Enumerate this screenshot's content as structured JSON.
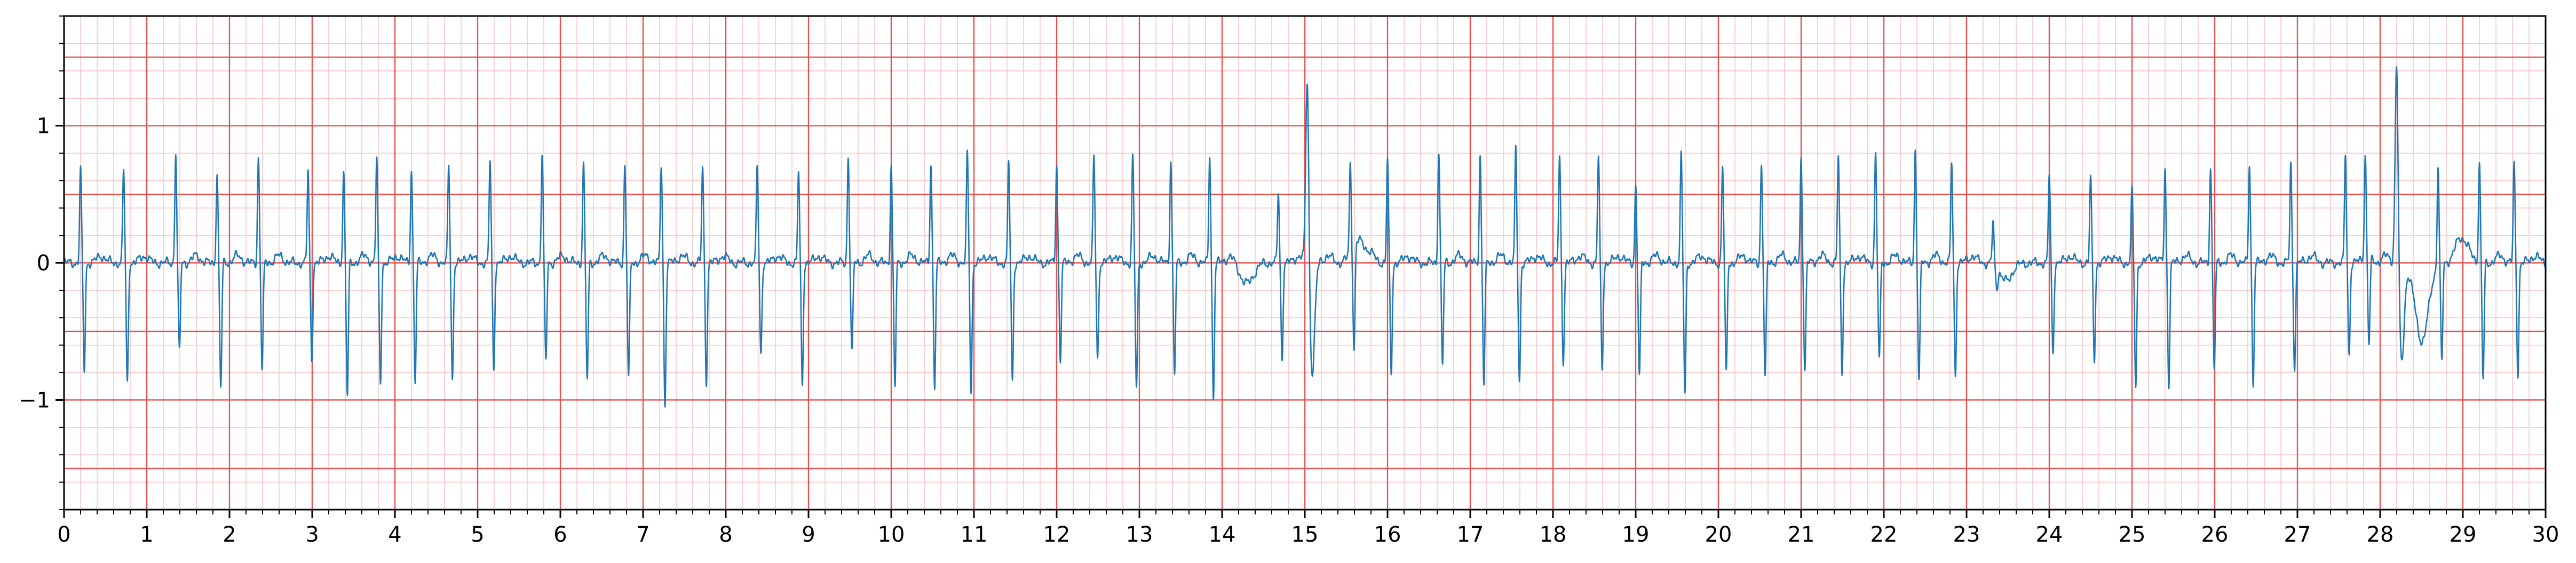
{
  "chart_data": {
    "type": "line",
    "title": "",
    "xlabel": "",
    "ylabel": "",
    "xlim": [
      0,
      30
    ],
    "ylim": [
      -1.8,
      1.8
    ],
    "x_ticks": [
      "0",
      "1",
      "2",
      "3",
      "4",
      "5",
      "6",
      "7",
      "8",
      "9",
      "10",
      "11",
      "12",
      "13",
      "14",
      "15",
      "16",
      "17",
      "18",
      "19",
      "20",
      "21",
      "22",
      "23",
      "24",
      "25",
      "26",
      "27",
      "28",
      "29",
      "30"
    ],
    "x_tick_values": [
      0,
      1,
      2,
      3,
      4,
      5,
      6,
      7,
      8,
      9,
      10,
      11,
      12,
      13,
      14,
      15,
      16,
      17,
      18,
      19,
      20,
      21,
      22,
      23,
      24,
      25,
      26,
      27,
      28,
      29,
      30
    ],
    "y_ticks": [
      "−1",
      "0",
      "1"
    ],
    "y_tick_values": [
      -1,
      0,
      1
    ],
    "grid": {
      "major_x_step": 1,
      "major_y_step": 0.5,
      "minor_step": 0.2,
      "major_color": "#e85050",
      "minor_color": "#f8c6c6"
    },
    "series": [
      {
        "color": "#1f77b4",
        "beats": [
          {
            "t": 0.2,
            "r": 0.68,
            "s": -0.78
          },
          {
            "t": 0.72,
            "r": 0.68,
            "s": -0.88
          },
          {
            "t": 1.35,
            "r": 0.8,
            "s": -0.65
          },
          {
            "t": 1.85,
            "r": 0.66,
            "s": -0.92
          },
          {
            "t": 2.35,
            "r": 0.78,
            "s": -0.78
          },
          {
            "t": 2.95,
            "r": 0.66,
            "s": -0.7
          },
          {
            "t": 3.38,
            "r": 0.66,
            "s": -0.98
          },
          {
            "t": 3.78,
            "r": 0.75,
            "s": -0.88
          },
          {
            "t": 4.2,
            "r": 0.69,
            "s": -0.86
          },
          {
            "t": 4.65,
            "r": 0.7,
            "s": -0.86
          },
          {
            "t": 5.15,
            "r": 0.75,
            "s": -0.78
          },
          {
            "t": 5.78,
            "r": 0.78,
            "s": -0.72
          },
          {
            "t": 6.28,
            "r": 0.73,
            "s": -0.86
          },
          {
            "t": 6.78,
            "r": 0.72,
            "s": -0.84
          },
          {
            "t": 7.22,
            "r": 0.72,
            "s": -1.04
          },
          {
            "t": 7.72,
            "r": 0.7,
            "s": -0.86
          },
          {
            "t": 8.38,
            "r": 0.71,
            "s": -0.66
          },
          {
            "t": 8.88,
            "r": 0.66,
            "s": -0.88
          },
          {
            "t": 9.48,
            "r": 0.78,
            "s": -0.66
          },
          {
            "t": 10.0,
            "r": 0.71,
            "s": -0.9
          },
          {
            "t": 10.48,
            "r": 0.73,
            "s": -0.9
          },
          {
            "t": 10.92,
            "r": 0.8,
            "s": -0.94
          },
          {
            "t": 11.42,
            "r": 0.73,
            "s": -0.86
          },
          {
            "t": 12.0,
            "r": 0.72,
            "s": -0.7
          },
          {
            "t": 12.45,
            "r": 0.78,
            "s": -0.7
          },
          {
            "t": 12.92,
            "r": 0.78,
            "s": -0.92
          },
          {
            "t": 13.38,
            "r": 0.75,
            "s": -0.8
          },
          {
            "t": 13.85,
            "r": 0.78,
            "s": -0.98
          },
          {
            "t": 14.68,
            "r": 0.5,
            "s": -0.7
          },
          {
            "t": 15.03,
            "r": 1.42,
            "s": -0.8,
            "wide": true
          },
          {
            "t": 15.55,
            "r": 0.65,
            "s": -0.76
          },
          {
            "t": 16.0,
            "r": 0.75,
            "s": -0.8
          },
          {
            "t": 16.62,
            "r": 0.82,
            "s": -0.74
          },
          {
            "t": 17.12,
            "r": 0.78,
            "s": -0.88
          },
          {
            "t": 17.55,
            "r": 0.82,
            "s": -0.86
          },
          {
            "t": 18.08,
            "r": 0.78,
            "s": -0.72
          },
          {
            "t": 18.55,
            "r": 0.78,
            "s": -0.78
          },
          {
            "t": 19.0,
            "r": 0.56,
            "s": -0.84
          },
          {
            "t": 19.55,
            "r": 0.78,
            "s": -0.96
          },
          {
            "t": 20.05,
            "r": 0.7,
            "s": -0.82
          },
          {
            "t": 20.52,
            "r": 0.72,
            "s": -0.85
          },
          {
            "t": 21.0,
            "r": 0.76,
            "s": -0.78
          },
          {
            "t": 21.45,
            "r": 0.78,
            "s": -0.8
          },
          {
            "t": 21.9,
            "r": 0.8,
            "s": -0.72
          },
          {
            "t": 22.38,
            "r": 0.82,
            "s": -0.86
          },
          {
            "t": 22.82,
            "r": 0.72,
            "s": -0.82
          },
          {
            "t": 23.32,
            "r": 0.3,
            "s": -0.15
          },
          {
            "t": 24.0,
            "r": 0.65,
            "s": -0.66
          },
          {
            "t": 24.5,
            "r": 0.62,
            "s": -0.7
          },
          {
            "t": 25.0,
            "r": 0.52,
            "s": -0.9
          },
          {
            "t": 25.4,
            "r": 0.68,
            "s": -0.88
          },
          {
            "t": 25.95,
            "r": 0.7,
            "s": -0.76
          },
          {
            "t": 26.42,
            "r": 0.72,
            "s": -0.88
          },
          {
            "t": 26.92,
            "r": 0.72,
            "s": -0.76
          },
          {
            "t": 27.58,
            "r": 0.78,
            "s": -0.66
          },
          {
            "t": 27.82,
            "r": 0.74,
            "s": -0.64
          },
          {
            "t": 28.2,
            "r": 1.52,
            "s": -0.72,
            "wide": true
          },
          {
            "t": 28.7,
            "r": 0.72,
            "s": -0.72
          },
          {
            "t": 29.2,
            "r": 0.72,
            "s": -0.86
          },
          {
            "t": 29.62,
            "r": 0.72,
            "s": -0.8
          }
        ],
        "baseline_events": [
          {
            "t": 14.3,
            "v": -0.15
          },
          {
            "t": 15.65,
            "v": 0.16
          },
          {
            "t": 23.5,
            "v": -0.15
          },
          {
            "t": 28.5,
            "v": -0.6
          },
          {
            "t": 29.0,
            "v": 0.15
          }
        ]
      }
    ]
  }
}
